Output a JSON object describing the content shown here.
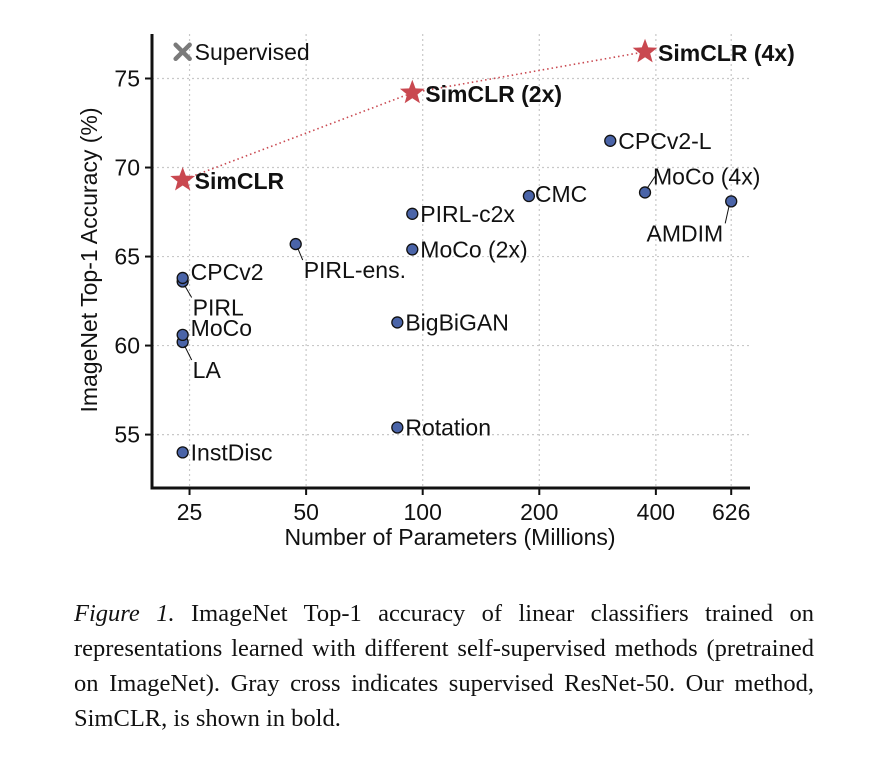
{
  "chart_data": {
    "type": "scatter",
    "xlabel": "Number of Parameters (Millions)",
    "ylabel": "ImageNet Top-1 Accuracy (%)",
    "x_scale": "log",
    "xlim": [
      20,
      700
    ],
    "ylim": [
      52,
      77.5
    ],
    "x_ticks": [
      25,
      50,
      100,
      200,
      400,
      626
    ],
    "y_ticks": [
      55,
      60,
      65,
      70,
      75
    ],
    "grid": true,
    "legend": {
      "label": "Supervised",
      "placement": "top-left"
    },
    "supervised_point": {
      "label": "Supervised",
      "x": 24,
      "y": 76.5
    },
    "points": [
      {
        "label": "InstDisc",
        "x": 24,
        "y": 54.0,
        "group": "other"
      },
      {
        "label": "LA",
        "x": 24,
        "y": 60.2,
        "group": "other"
      },
      {
        "label": "MoCo",
        "x": 24,
        "y": 60.6,
        "group": "other"
      },
      {
        "label": "PIRL",
        "x": 24,
        "y": 63.6,
        "group": "other"
      },
      {
        "label": "CPCv2",
        "x": 24,
        "y": 63.8,
        "group": "other"
      },
      {
        "label": "PIRL-ens.",
        "x": 47,
        "y": 65.7,
        "group": "other"
      },
      {
        "label": "Rotation",
        "x": 86,
        "y": 55.4,
        "group": "other"
      },
      {
        "label": "BigBiGAN",
        "x": 86,
        "y": 61.3,
        "group": "other"
      },
      {
        "label": "MoCo (2x)",
        "x": 94,
        "y": 65.4,
        "group": "other"
      },
      {
        "label": "PIRL-c2x",
        "x": 94,
        "y": 67.4,
        "group": "other"
      },
      {
        "label": "CMC",
        "x": 188,
        "y": 68.4,
        "group": "other"
      },
      {
        "label": "CPCv2-L",
        "x": 305,
        "y": 71.5,
        "group": "other"
      },
      {
        "label": "MoCo (4x)",
        "x": 375,
        "y": 68.6,
        "group": "other"
      },
      {
        "label": "AMDIM",
        "x": 626,
        "y": 68.1,
        "group": "other"
      },
      {
        "label": "SimCLR",
        "x": 24,
        "y": 69.3,
        "group": "simclr"
      },
      {
        "label": "SimCLR (2x)",
        "x": 94,
        "y": 74.2,
        "group": "simclr"
      },
      {
        "label": "SimCLR (4x)",
        "x": 375,
        "y": 76.5,
        "group": "simclr"
      }
    ],
    "colors": {
      "other_fill": "#4a64a8",
      "other_stroke": "#111111",
      "simclr": "#c94850",
      "supervised": "#7a7a7a",
      "grid": "#c8c8c8"
    }
  },
  "caption": {
    "label": "Figure 1.",
    "text": " ImageNet Top-1 accuracy of linear classifiers trained on representations learned with different self-supervised methods (pretrained on ImageNet). Gray cross indicates supervised ResNet-50. Our method, SimCLR, is shown in bold."
  }
}
